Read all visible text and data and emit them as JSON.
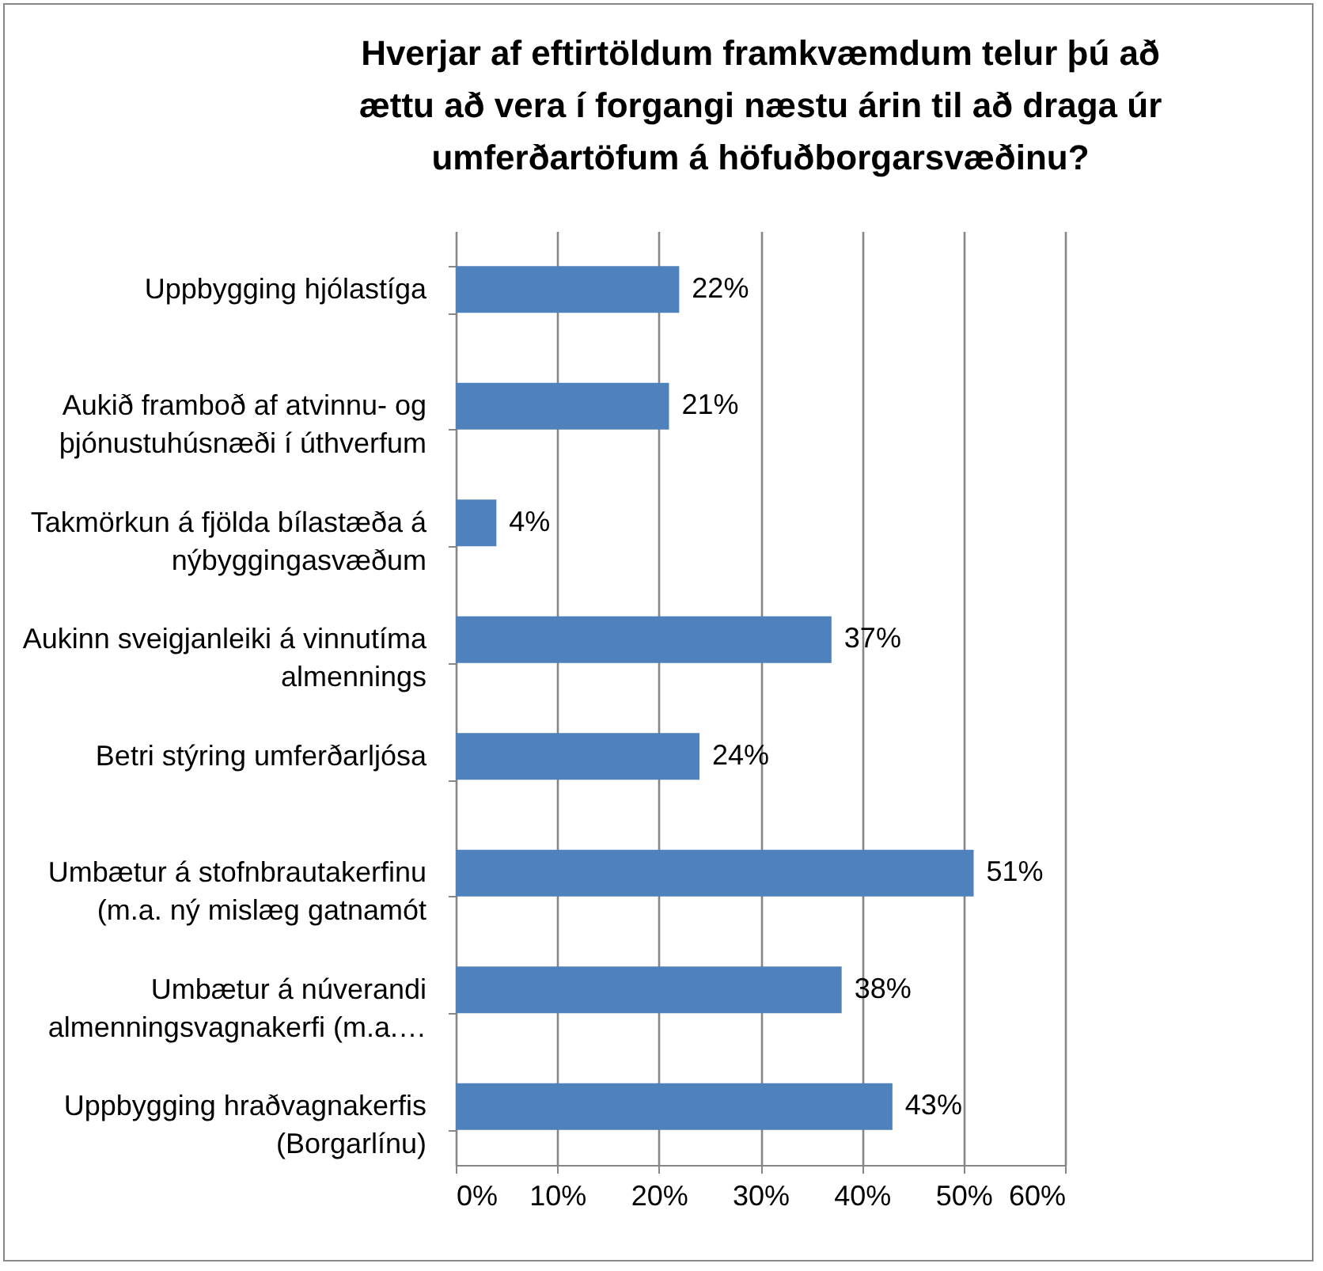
{
  "chart_data": {
    "type": "bar",
    "orientation": "horizontal",
    "title": "Hverjar af eftirtöldum framkvæmdum telur þú að ættu að vera í forgangi næstu árin til að draga úr umferðartöfum á höfuðborgarsvæðinu?",
    "categories": [
      "Uppbygging hjólastíga",
      "Aukið framboð af atvinnu- og þjónustuhúsnæði í úthverfum",
      "Takmörkun á fjölda bílastæða á nýbyggingasvæðum",
      "Aukinn sveigjanleiki á vinnutíma almennings",
      "Betri stýring umferðarljósa",
      "Umbætur á stofnbrautakerfinu (m.a. ný mislæg gatnamót",
      "Umbætur á núverandi almenningsvagnakerfi (m.a.…",
      "Uppbygging hraðvagnakerfis (Borgarlínu)"
    ],
    "values": [
      22,
      21,
      4,
      37,
      24,
      51,
      38,
      43
    ],
    "value_labels": [
      "22%",
      "21%",
      "4%",
      "37%",
      "24%",
      "51%",
      "38%",
      "43%"
    ],
    "color": "#4f81bd",
    "xlim": [
      0,
      60
    ],
    "xticks": [
      {
        "value": 0,
        "label": "0%"
      },
      {
        "value": 10,
        "label": "10%"
      },
      {
        "value": 20,
        "label": "20%"
      },
      {
        "value": 30,
        "label": "30%"
      },
      {
        "value": 40,
        "label": "40%"
      },
      {
        "value": 50,
        "label": "50%"
      },
      {
        "value": 60,
        "label": "60%"
      }
    ],
    "grid": "x"
  }
}
